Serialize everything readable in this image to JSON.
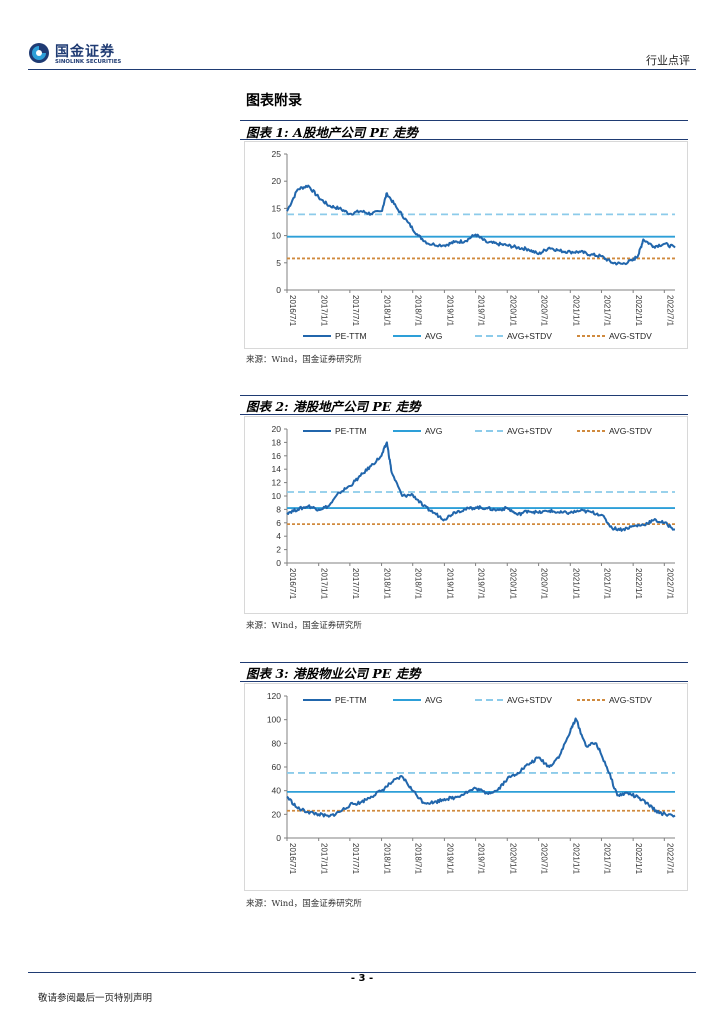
{
  "header": {
    "brand_cn": "国金证券",
    "brand_en": "SINOLINK SECURITIES",
    "category": "行业点评"
  },
  "section_title": "图表附录",
  "legend_labels": [
    "PE-TTM",
    "AVG",
    "AVG+STDV",
    "AVG-STDV"
  ],
  "colors": {
    "pe": "#2166ac",
    "avg": "#2d9fd8",
    "upper": "#8ccbea",
    "lower": "#d08a3e",
    "rule": "#1f3b73"
  },
  "charts": [
    {
      "title": "图表 1:  A股地产公司 PE 走势",
      "source": "来源：Wind，国金证券研究所",
      "chart_data": {
        "type": "line",
        "ylim": [
          0,
          25
        ],
        "yticks": [
          0,
          5,
          10,
          15,
          20,
          25
        ],
        "x_ticks": [
          "2016/7/1",
          "2017/1/1",
          "2017/7/1",
          "2018/1/1",
          "2018/7/1",
          "2019/1/1",
          "2019/7/1",
          "2020/1/1",
          "2020/7/1",
          "2021/1/1",
          "2021/7/1",
          "2022/1/1",
          "2022/7/1"
        ],
        "x_tick_labels": [
          "2016/7/1",
          "2017/1/1",
          "2017/7/1",
          "2018/1/1",
          "2018/7/1",
          "2019/1/1",
          "2019/7/1",
          "2020/1/1",
          "2020/7/1",
          "2021/1/1",
          "2021/7/1",
          "2022/1/1",
          "2022/7/1"
        ],
        "x_range": [
          "2016/7/1",
          "2022/9/1"
        ],
        "legend_position": "bottom",
        "avg": 9.8,
        "upper": 13.9,
        "lower": 5.8,
        "series": [
          {
            "name": "PE-TTM",
            "x": [
              "2016/7/1",
              "2016/9/1",
              "2016/11/1",
              "2017/1/1",
              "2017/3/1",
              "2017/5/1",
              "2017/7/1",
              "2017/9/1",
              "2017/11/1",
              "2018/1/1",
              "2018/2/1",
              "2018/4/1",
              "2018/6/1",
              "2018/8/1",
              "2018/10/1",
              "2019/1/1",
              "2019/3/1",
              "2019/5/1",
              "2019/7/1",
              "2019/9/1",
              "2019/11/1",
              "2020/1/1",
              "2020/3/1",
              "2020/5/1",
              "2020/7/1",
              "2020/9/1",
              "2020/11/1",
              "2021/1/1",
              "2021/3/1",
              "2021/5/1",
              "2021/7/1",
              "2021/9/1",
              "2021/11/1",
              "2022/1/1",
              "2022/2/1",
              "2022/3/1",
              "2022/5/1",
              "2022/7/1",
              "2022/9/1"
            ],
            "values": [
              14.5,
              18.5,
              19.2,
              17.0,
              15.5,
              15.0,
              14.0,
              14.5,
              14.0,
              14.5,
              17.8,
              15.0,
              12.5,
              10.0,
              8.5,
              8.2,
              8.8,
              9.0,
              10.2,
              8.8,
              8.5,
              8.2,
              7.8,
              7.5,
              6.6,
              7.8,
              7.2,
              7.0,
              7.0,
              6.5,
              6.2,
              5.0,
              4.8,
              5.5,
              6.5,
              9.3,
              8.0,
              8.5,
              7.8
            ]
          }
        ]
      }
    },
    {
      "title": "图表 2:  港股地产公司 PE 走势",
      "source": "来源：Wind，国金证券研究所",
      "chart_data": {
        "type": "line",
        "ylim": [
          0,
          20
        ],
        "yticks": [
          0,
          2,
          4,
          6,
          8,
          10,
          12,
          14,
          16,
          18,
          20
        ],
        "x_ticks": [
          "2016/7/1",
          "2017/1/1",
          "2017/7/1",
          "2018/1/1",
          "2018/7/1",
          "2019/1/1",
          "2019/7/1",
          "2020/1/1",
          "2020/7/1",
          "2021/1/1",
          "2021/7/1",
          "2022/1/1",
          "2022/7/1"
        ],
        "x_tick_labels": [
          "2016/7/1",
          "2017/1/1",
          "2017/7/1",
          "2018/1/1",
          "2018/7/1",
          "2019/1/1",
          "2019/7/1",
          "2020/1/1",
          "2020/7/1",
          "2021/1/1",
          "2021/7/1",
          "2022/1/1",
          "2022/7/1"
        ],
        "x_range": [
          "2016/7/1",
          "2022/9/1"
        ],
        "legend_position": "top",
        "avg": 8.2,
        "upper": 10.6,
        "lower": 5.8,
        "series": [
          {
            "name": "PE-TTM",
            "x": [
              "2016/7/1",
              "2016/9/1",
              "2016/11/1",
              "2017/1/1",
              "2017/3/1",
              "2017/5/1",
              "2017/7/1",
              "2017/9/1",
              "2017/11/1",
              "2018/1/1",
              "2018/2/1",
              "2018/3/1",
              "2018/5/1",
              "2018/7/1",
              "2018/9/1",
              "2018/11/1",
              "2019/1/1",
              "2019/3/1",
              "2019/5/1",
              "2019/7/1",
              "2019/9/1",
              "2019/11/1",
              "2020/1/1",
              "2020/3/1",
              "2020/5/1",
              "2020/7/1",
              "2020/9/1",
              "2020/11/1",
              "2021/1/1",
              "2021/3/1",
              "2021/5/1",
              "2021/7/1",
              "2021/9/1",
              "2021/11/1",
              "2022/1/1",
              "2022/3/1",
              "2022/5/1",
              "2022/7/1",
              "2022/9/1"
            ],
            "values": [
              7.5,
              8.0,
              8.5,
              8.0,
              8.5,
              10.5,
              11.5,
              13.0,
              14.5,
              16.0,
              18.0,
              13.5,
              10.0,
              10.2,
              8.5,
              7.5,
              6.5,
              7.6,
              8.0,
              8.3,
              8.2,
              7.9,
              8.2,
              7.2,
              7.8,
              7.5,
              7.8,
              7.5,
              7.5,
              7.8,
              7.6,
              7.2,
              5.2,
              5.0,
              5.5,
              5.7,
              6.4,
              6.0,
              5.0
            ]
          }
        ]
      }
    },
    {
      "title": "图表 3:  港股物业公司 PE 走势",
      "source": "来源：Wind，国金证券研究所",
      "chart_data": {
        "type": "line",
        "ylim": [
          0,
          120
        ],
        "yticks": [
          0,
          20,
          40,
          60,
          80,
          100,
          120
        ],
        "x_ticks": [
          "2016/7/1",
          "2017/1/1",
          "2017/7/1",
          "2018/1/1",
          "2018/7/1",
          "2019/1/1",
          "2019/7/1",
          "2020/1/1",
          "2020/7/1",
          "2021/1/1",
          "2021/7/1",
          "2022/1/1",
          "2022/7/1"
        ],
        "x_tick_labels": [
          "2016/7/1",
          "2017/1/1",
          "2017/7/1",
          "2018/1/1",
          "2018/7/1",
          "2019/1/1",
          "2019/7/1",
          "2020/1/1",
          "2020/7/1",
          "2021/1/1",
          "2021/7/1",
          "2022/1/1",
          "2022/7/1"
        ],
        "x_range": [
          "2016/7/1",
          "2022/9/1"
        ],
        "legend_position": "top",
        "avg": 39,
        "upper": 55,
        "lower": 23,
        "series": [
          {
            "name": "PE-TTM",
            "x": [
              "2016/7/1",
              "2016/9/1",
              "2016/11/1",
              "2017/1/1",
              "2017/3/1",
              "2017/5/1",
              "2017/7/1",
              "2017/9/1",
              "2017/11/1",
              "2018/1/1",
              "2018/3/1",
              "2018/5/1",
              "2018/7/1",
              "2018/9/1",
              "2018/11/1",
              "2019/1/1",
              "2019/3/1",
              "2019/5/1",
              "2019/7/1",
              "2019/9/1",
              "2019/11/1",
              "2020/1/1",
              "2020/3/1",
              "2020/5/1",
              "2020/7/1",
              "2020/9/1",
              "2020/11/1",
              "2021/1/1",
              "2021/2/1",
              "2021/4/1",
              "2021/6/1",
              "2021/8/1",
              "2021/10/1",
              "2021/12/1",
              "2022/2/1",
              "2022/4/1",
              "2022/6/1",
              "2022/9/1"
            ],
            "values": [
              35,
              25,
              22,
              20,
              18,
              22,
              28,
              30,
              35,
              40,
              47,
              52,
              40,
              30,
              30,
              33,
              34,
              38,
              42,
              38,
              40,
              50,
              55,
              62,
              68,
              60,
              70,
              90,
              101,
              78,
              80,
              60,
              36,
              38,
              34,
              28,
              21,
              19
            ]
          }
        ]
      }
    }
  ],
  "footer": {
    "page_number": "- 3 -",
    "disclaimer": "敬请参阅最后一页特别声明"
  }
}
